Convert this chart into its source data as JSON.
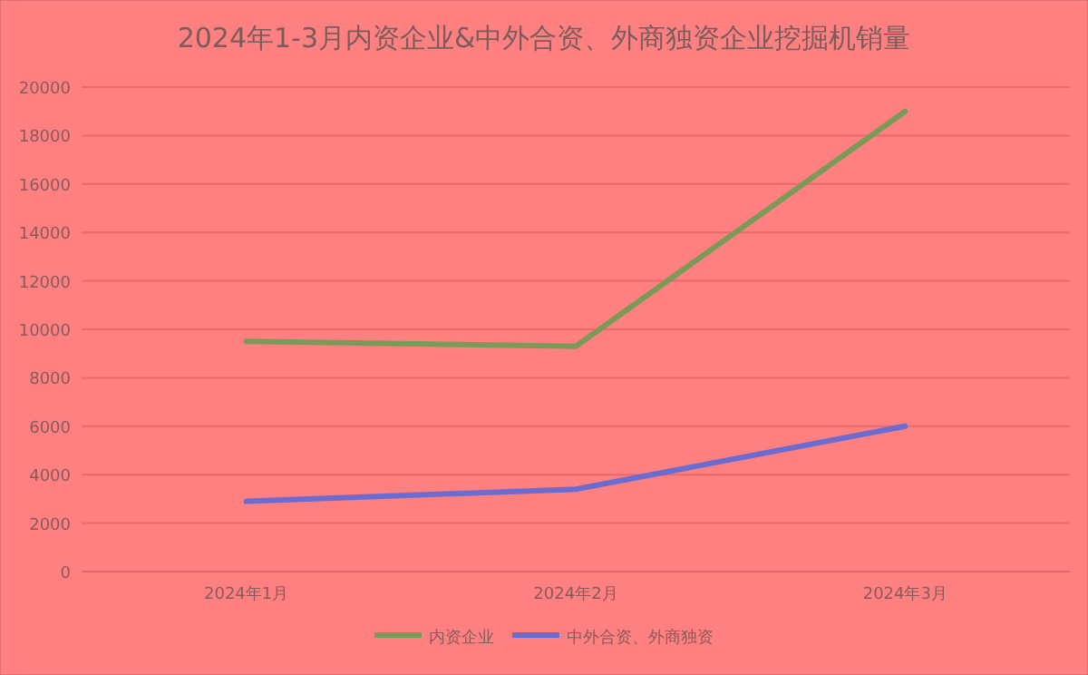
{
  "chart_data": {
    "type": "line",
    "title": "2024年1-3月内资企业&中外合资、外商独资企业挖掘机销量",
    "categories": [
      "2024年1月",
      "2024年2月",
      "2024年3月"
    ],
    "series": [
      {
        "name": "内资企业",
        "color": "#7c9a57",
        "values": [
          9500,
          9300,
          19000
        ]
      },
      {
        "name": "中外合资、外商独资",
        "color": "#6b6bd0",
        "values": [
          2900,
          3400,
          6000
        ]
      }
    ],
    "ylim": [
      0,
      20000
    ],
    "yticks": [
      0,
      2000,
      4000,
      6000,
      8000,
      10000,
      12000,
      14000,
      16000,
      18000,
      20000
    ],
    "grid": "y",
    "legend": "bottom",
    "marker": "none",
    "line_style": "solid"
  }
}
